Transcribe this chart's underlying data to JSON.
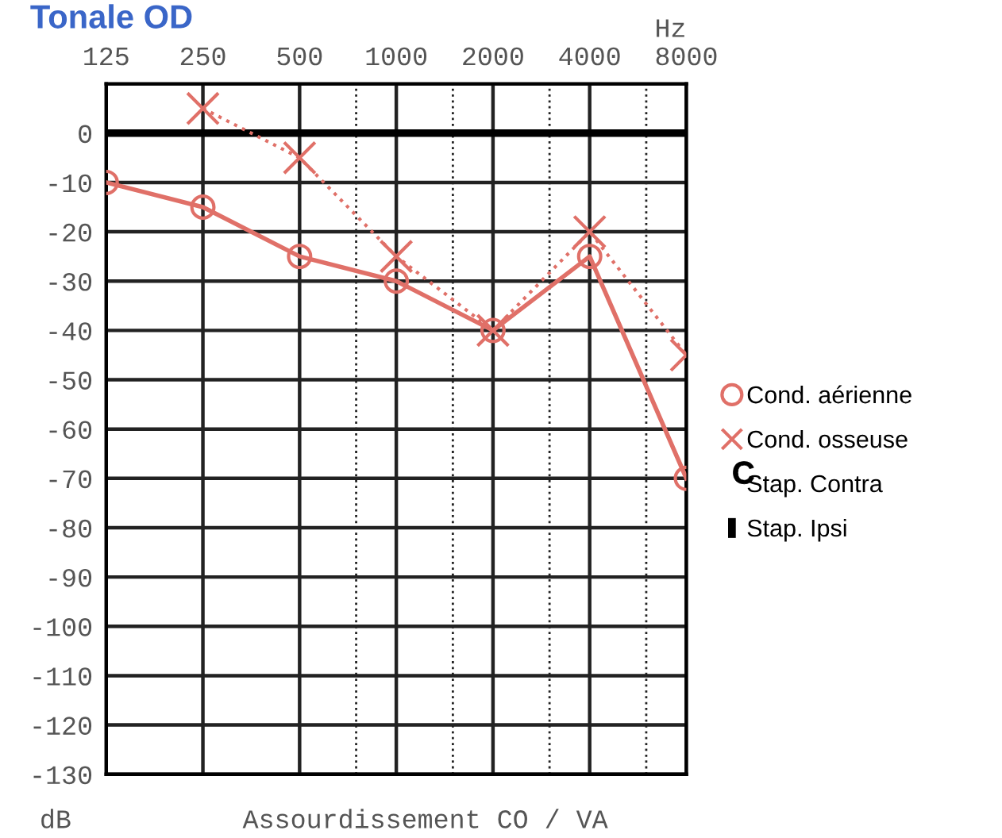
{
  "chart_data": {
    "type": "line",
    "title": "Tonale OD",
    "xlabel": "Hz",
    "ylabel": "dB",
    "annotations": [
      "Assourdissement CO / VA"
    ],
    "log": "x",
    "xlim": [
      125,
      8000
    ],
    "ylim": [
      -130,
      10
    ],
    "xticks": [
      125,
      250,
      500,
      {
        "value": 750,
        "label": null
      },
      1000,
      {
        "value": 1500,
        "label": null
      },
      2000,
      {
        "value": 3000,
        "label": null
      },
      4000,
      {
        "value": 6000,
        "label": null
      },
      8000
    ],
    "yticks": [
      {
        "value": 10,
        "label": null
      },
      0,
      -10,
      -20,
      -30,
      -40,
      -50,
      -60,
      -70,
      -80,
      -90,
      -100,
      -110,
      -120,
      -130
    ],
    "grid": true,
    "legend": "right",
    "ref_lines": [
      {
        "axis": "y",
        "value": 0,
        "color": "#000000"
      }
    ],
    "series": [
      {
        "name": "Cond. aérienne",
        "color": "#e07068",
        "marker": "circle",
        "line_style": "solid",
        "x": [
          125,
          250,
          500,
          1000,
          2000,
          4000,
          8000
        ],
        "values": [
          -10,
          -15,
          -25,
          -30,
          -40,
          -25,
          -70
        ]
      },
      {
        "name": "Cond. osseuse",
        "color": "#e07068",
        "marker": "cross",
        "line_style": "dotted",
        "x": [
          250,
          500,
          1000,
          2000,
          4000,
          8000
        ],
        "values": [
          5,
          -5,
          -25,
          -40,
          -20,
          -45
        ]
      },
      {
        "name": "Stap. Contra",
        "color": "#000000",
        "marker": "letter_c",
        "line_style": "none"
      },
      {
        "name": "Stap. Ipsi",
        "color": "#000000",
        "marker": "vline",
        "line_style": "none"
      }
    ]
  }
}
